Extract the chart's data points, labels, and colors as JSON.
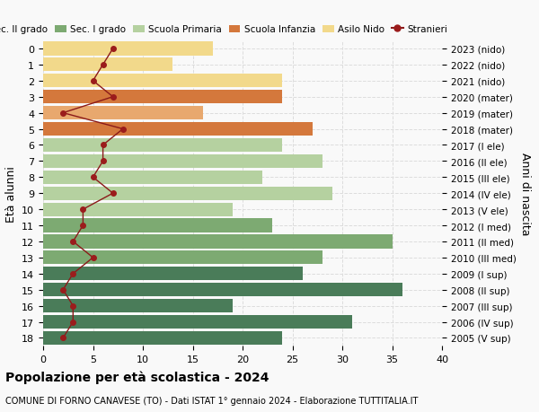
{
  "ages": [
    0,
    1,
    2,
    3,
    4,
    5,
    6,
    7,
    8,
    9,
    10,
    11,
    12,
    13,
    14,
    15,
    16,
    17,
    18
  ],
  "years": [
    "2023 (nido)",
    "2022 (nido)",
    "2021 (nido)",
    "2020 (mater)",
    "2019 (mater)",
    "2018 (mater)",
    "2017 (I ele)",
    "2016 (II ele)",
    "2015 (III ele)",
    "2014 (IV ele)",
    "2013 (V ele)",
    "2012 (I med)",
    "2011 (II med)",
    "2010 (III med)",
    "2009 (I sup)",
    "2008 (II sup)",
    "2007 (III sup)",
    "2006 (IV sup)",
    "2005 (V sup)"
  ],
  "bar_values": [
    17,
    13,
    24,
    24,
    16,
    27,
    24,
    28,
    22,
    29,
    19,
    23,
    35,
    28,
    26,
    36,
    19,
    31,
    24
  ],
  "stranieri": [
    7,
    6,
    5,
    7,
    2,
    8,
    6,
    6,
    5,
    7,
    4,
    4,
    3,
    5,
    3,
    2,
    3,
    3,
    2
  ],
  "bar_colors": [
    "#f2d98b",
    "#f2d98b",
    "#f2d98b",
    "#d4783c",
    "#e8a86e",
    "#d4783c",
    "#b5d1a0",
    "#b5d1a0",
    "#b5d1a0",
    "#b5d1a0",
    "#b5d1a0",
    "#7daa72",
    "#7daa72",
    "#7daa72",
    "#4a7c59",
    "#4a7c59",
    "#4a7c59",
    "#4a7c59",
    "#4a7c59"
  ],
  "legend_labels": [
    "Sec. II grado",
    "Sec. I grado",
    "Scuola Primaria",
    "Scuola Infanzia",
    "Asilo Nido",
    "Stranieri"
  ],
  "legend_colors": [
    "#4a7c59",
    "#7daa72",
    "#b5d1a0",
    "#d4783c",
    "#f2d98b",
    "#9b1c1c"
  ],
  "stranieri_color": "#9b1c1c",
  "stranieri_line_color": "#8b1a1a",
  "ylabel_left": "Età alunni",
  "ylabel_right": "Anni di nascita",
  "title": "Popolazione per età scolastica - 2024",
  "subtitle": "COMUNE DI FORNO CANAVESE (TO) - Dati ISTAT 1° gennaio 2024 - Elaborazione TUTTITALIA.IT",
  "xlim": [
    0,
    40
  ],
  "background_color": "#f9f9f9",
  "grid_color": "#dddddd"
}
